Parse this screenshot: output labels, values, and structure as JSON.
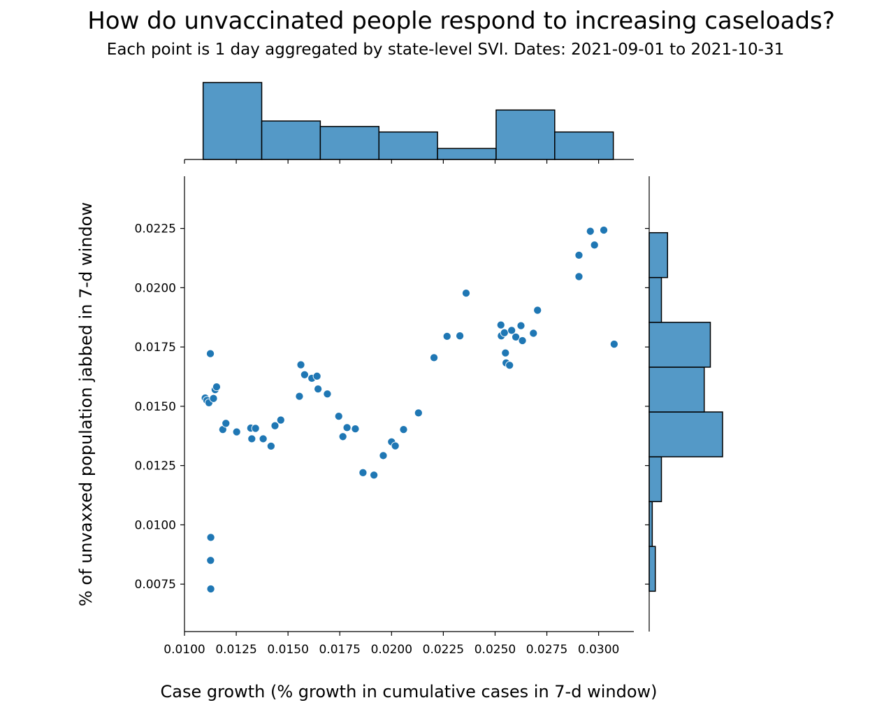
{
  "chart_data": {
    "type": "scatter",
    "title": "How do unvaccinated people respond to increasing caseloads?",
    "subtitle": "Each point is 1 day aggregated by state-level SVI. Dates: 2021-09-01 to 2021-10-31",
    "xlabel": "Case growth (% growth in cumulative cases in 7-d window)",
    "ylabel": "% of unvaxxed population jabbed in 7-d window",
    "xlim": [
      0.01,
      0.0317
    ],
    "ylim": [
      0.0055,
      0.0247
    ],
    "xticks": [
      "0.0100",
      "0.0125",
      "0.0150",
      "0.0175",
      "0.0200",
      "0.0225",
      "0.0250",
      "0.0275",
      "0.0300"
    ],
    "yticks": [
      "0.0075",
      "0.0100",
      "0.0125",
      "0.0150",
      "0.0175",
      "0.0200",
      "0.0225"
    ],
    "grid": false,
    "legend": "none",
    "point_color": "#1f77b4",
    "bar_color": "#5499c7",
    "bar_edge_color": "#000000",
    "points": [
      {
        "x": 0.011,
        "y": 0.01535
      },
      {
        "x": 0.01108,
        "y": 0.01525
      },
      {
        "x": 0.01118,
        "y": 0.01515
      },
      {
        "x": 0.01125,
        "y": 0.01722
      },
      {
        "x": 0.01127,
        "y": 0.00947
      },
      {
        "x": 0.01126,
        "y": 0.0085
      },
      {
        "x": 0.01127,
        "y": 0.0073
      },
      {
        "x": 0.0114,
        "y": 0.01533
      },
      {
        "x": 0.01148,
        "y": 0.0157
      },
      {
        "x": 0.01155,
        "y": 0.01582
      },
      {
        "x": 0.01185,
        "y": 0.01402
      },
      {
        "x": 0.012,
        "y": 0.01428
      },
      {
        "x": 0.01252,
        "y": 0.01392
      },
      {
        "x": 0.0132,
        "y": 0.01408
      },
      {
        "x": 0.01325,
        "y": 0.01363
      },
      {
        "x": 0.01343,
        "y": 0.01407
      },
      {
        "x": 0.0138,
        "y": 0.01363
      },
      {
        "x": 0.01418,
        "y": 0.01332
      },
      {
        "x": 0.01437,
        "y": 0.01418
      },
      {
        "x": 0.01465,
        "y": 0.01442
      },
      {
        "x": 0.01555,
        "y": 0.01542
      },
      {
        "x": 0.01562,
        "y": 0.01675
      },
      {
        "x": 0.0158,
        "y": 0.01633
      },
      {
        "x": 0.01615,
        "y": 0.01618
      },
      {
        "x": 0.0164,
        "y": 0.01627
      },
      {
        "x": 0.01645,
        "y": 0.01573
      },
      {
        "x": 0.0169,
        "y": 0.01552
      },
      {
        "x": 0.01745,
        "y": 0.01458
      },
      {
        "x": 0.01765,
        "y": 0.01372
      },
      {
        "x": 0.01785,
        "y": 0.0141
      },
      {
        "x": 0.01825,
        "y": 0.01405
      },
      {
        "x": 0.01862,
        "y": 0.0122
      },
      {
        "x": 0.01915,
        "y": 0.0121
      },
      {
        "x": 0.0196,
        "y": 0.01292
      },
      {
        "x": 0.02,
        "y": 0.0135
      },
      {
        "x": 0.02018,
        "y": 0.01333
      },
      {
        "x": 0.02058,
        "y": 0.01402
      },
      {
        "x": 0.0213,
        "y": 0.01472
      },
      {
        "x": 0.02205,
        "y": 0.01705
      },
      {
        "x": 0.02268,
        "y": 0.01795
      },
      {
        "x": 0.0233,
        "y": 0.01797
      },
      {
        "x": 0.0236,
        "y": 0.01977
      },
      {
        "x": 0.02528,
        "y": 0.01843
      },
      {
        "x": 0.0253,
        "y": 0.01797
      },
      {
        "x": 0.02545,
        "y": 0.0181
      },
      {
        "x": 0.0255,
        "y": 0.01725
      },
      {
        "x": 0.02553,
        "y": 0.01683
      },
      {
        "x": 0.0257,
        "y": 0.01673
      },
      {
        "x": 0.0258,
        "y": 0.0182
      },
      {
        "x": 0.026,
        "y": 0.01792
      },
      {
        "x": 0.02625,
        "y": 0.0184
      },
      {
        "x": 0.02632,
        "y": 0.01777
      },
      {
        "x": 0.02685,
        "y": 0.01808
      },
      {
        "x": 0.02705,
        "y": 0.01905
      },
      {
        "x": 0.02905,
        "y": 0.02137
      },
      {
        "x": 0.02905,
        "y": 0.02047
      },
      {
        "x": 0.0296,
        "y": 0.02238
      },
      {
        "x": 0.0298,
        "y": 0.0218
      },
      {
        "x": 0.03025,
        "y": 0.02243
      },
      {
        "x": 0.03075,
        "y": 0.01762
      }
    ],
    "x_histogram": {
      "bin_edges": [
        0.0109,
        0.01373,
        0.01656,
        0.01939,
        0.02222,
        0.02505,
        0.02788,
        0.03071
      ],
      "counts": [
        14,
        7,
        6,
        5,
        2,
        9,
        5
      ]
    },
    "y_histogram": {
      "bin_edges": [
        0.0072,
        0.00909,
        0.01098,
        0.01287,
        0.01476,
        0.01665,
        0.01854,
        0.02043,
        0.02232
      ],
      "counts": [
        1,
        0.5,
        2,
        12,
        9,
        10,
        2,
        3
      ]
    }
  }
}
